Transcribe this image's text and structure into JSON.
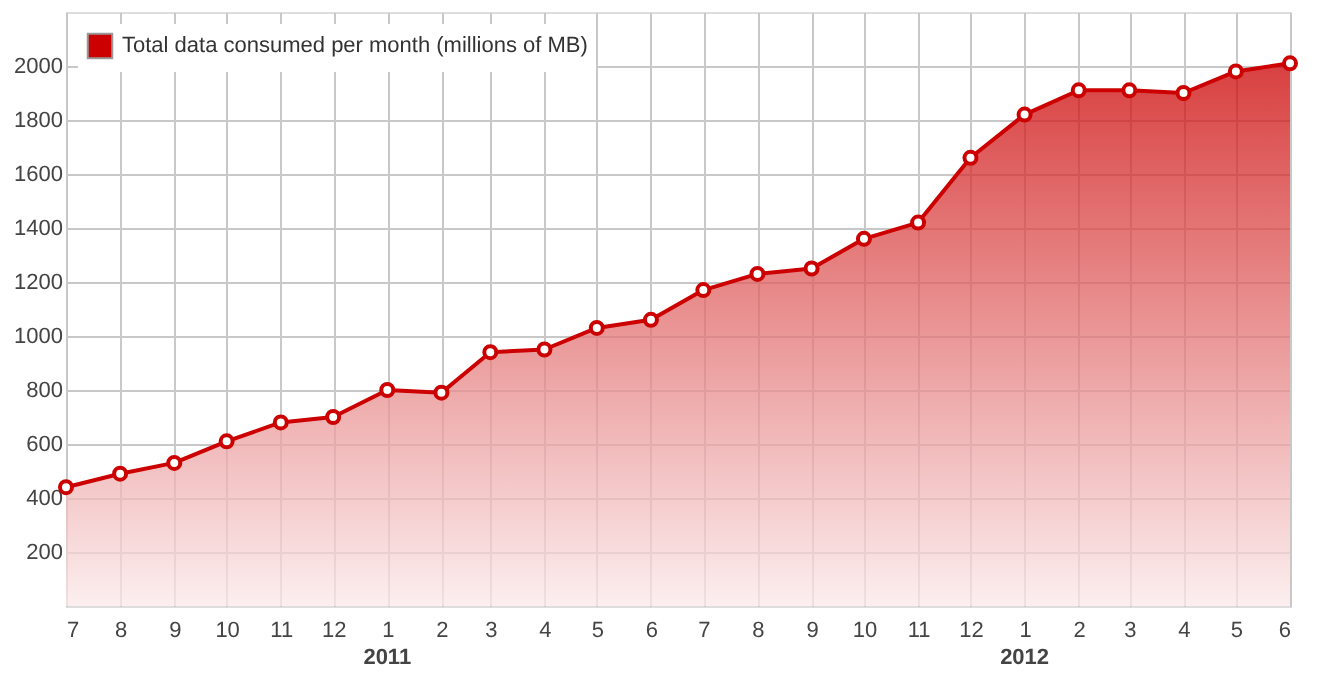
{
  "chart_data": {
    "type": "area",
    "x": [
      "2010-07",
      "2010-08",
      "2010-09",
      "2010-10",
      "2010-11",
      "2010-12",
      "2011-01",
      "2011-02",
      "2011-03",
      "2011-04",
      "2011-05",
      "2011-06",
      "2011-07",
      "2011-08",
      "2011-09",
      "2011-10",
      "2011-11",
      "2011-12",
      "2012-01",
      "2012-02",
      "2012-03",
      "2012-04",
      "2012-05",
      "2012-06"
    ],
    "series": [
      {
        "name": "Total data consumed per month (millions of MB)",
        "color": "#cc0000",
        "values": [
          440,
          490,
          530,
          610,
          680,
          700,
          800,
          790,
          940,
          950,
          1030,
          1060,
          1170,
          1230,
          1250,
          1360,
          1420,
          1660,
          1820,
          1910,
          1910,
          1900,
          1980,
          2010
        ]
      }
    ],
    "xlim": [
      "2010-07",
      "2012-06"
    ],
    "xticks": [
      {
        "value": "2010-07",
        "label": "7"
      },
      {
        "value": "2010-08",
        "label": "8"
      },
      {
        "value": "2010-09",
        "label": "9"
      },
      {
        "value": "2010-10",
        "label": "10"
      },
      {
        "value": "2010-11",
        "label": "11"
      },
      {
        "value": "2010-12",
        "label": "12"
      },
      {
        "value": "2011-01",
        "label": "1"
      },
      {
        "value": "2011-02",
        "label": "2"
      },
      {
        "value": "2011-03",
        "label": "3"
      },
      {
        "value": "2011-04",
        "label": "4"
      },
      {
        "value": "2011-05",
        "label": "5"
      },
      {
        "value": "2011-06",
        "label": "6"
      },
      {
        "value": "2011-07",
        "label": "7"
      },
      {
        "value": "2011-08",
        "label": "8"
      },
      {
        "value": "2011-09",
        "label": "9"
      },
      {
        "value": "2011-10",
        "label": "10"
      },
      {
        "value": "2011-11",
        "label": "11"
      },
      {
        "value": "2011-12",
        "label": "12"
      },
      {
        "value": "2012-01",
        "label": "1"
      },
      {
        "value": "2012-02",
        "label": "2"
      },
      {
        "value": "2012-03",
        "label": "3"
      },
      {
        "value": "2012-04",
        "label": "4"
      },
      {
        "value": "2012-05",
        "label": "5"
      },
      {
        "value": "2012-06",
        "label": "6"
      }
    ],
    "ylim": [
      0,
      2200
    ],
    "yticks": [
      200,
      400,
      600,
      800,
      1000,
      1200,
      1400,
      1600,
      1800,
      2000
    ],
    "annotations": [
      "2011",
      "2012"
    ],
    "grid": true,
    "legend": "top left",
    "marker": "circle",
    "line_style": "solid"
  }
}
